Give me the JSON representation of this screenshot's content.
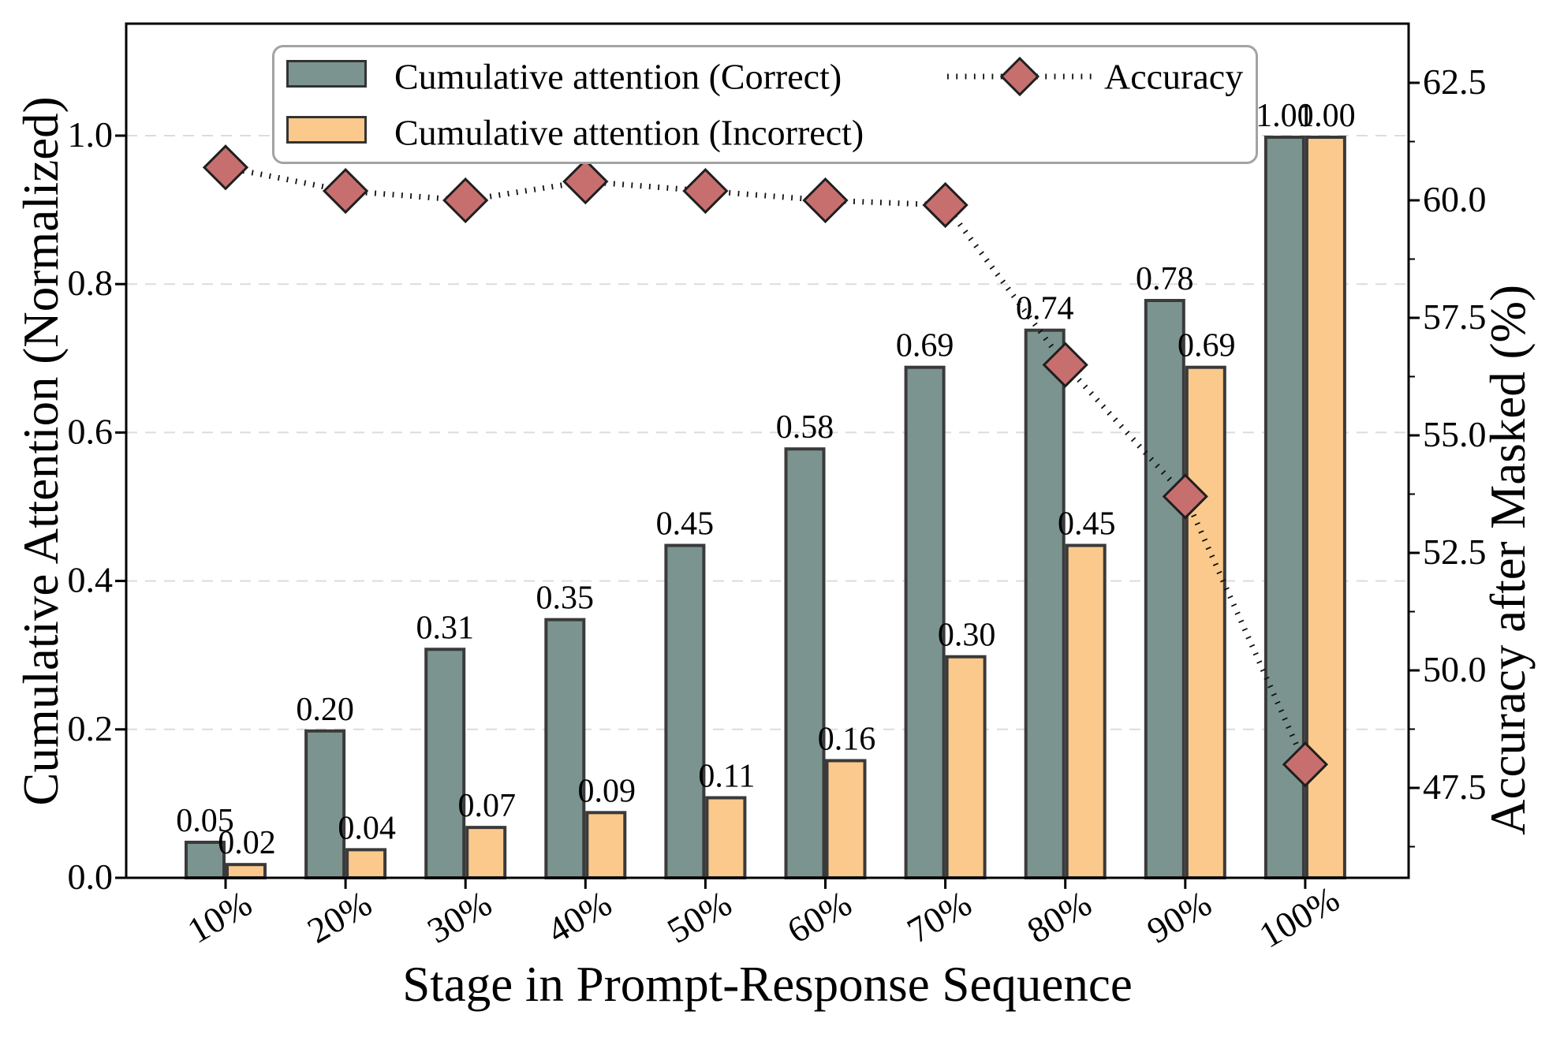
{
  "axes": {
    "x_title": "Stage in Prompt-Response Sequence",
    "y_left_title": "Cumulative Attention (Normalized)",
    "y_right_title": "Accuracy after Masked (%)"
  },
  "legend": {
    "correct_label": "Cumulative attention (Correct)",
    "incorrect_label": "Cumulative attention (Incorrect)",
    "accuracy_label": "Accuracy"
  },
  "chart_data": {
    "type": "bar",
    "categories": [
      "10%",
      "20%",
      "30%",
      "40%",
      "50%",
      "60%",
      "70%",
      "80%",
      "90%",
      "100%"
    ],
    "series": [
      {
        "name": "Cumulative attention (Correct)",
        "type": "bar",
        "axis": "left",
        "color": "#7B948F",
        "values": [
          0.05,
          0.2,
          0.31,
          0.35,
          0.45,
          0.58,
          0.69,
          0.74,
          0.78,
          1.0
        ],
        "labels": [
          "0.05",
          "0.20",
          "0.31",
          "0.35",
          "0.45",
          "0.58",
          "0.69",
          "0.74",
          "0.78",
          "1.00"
        ]
      },
      {
        "name": "Cumulative attention (Incorrect)",
        "type": "bar",
        "axis": "left",
        "color": "#FBC98C",
        "values": [
          0.02,
          0.04,
          0.07,
          0.09,
          0.11,
          0.16,
          0.3,
          0.45,
          0.69,
          1.0
        ],
        "labels": [
          "0.02",
          "0.04",
          "0.07",
          "0.09",
          "0.11",
          "0.16",
          "0.30",
          "0.45",
          "0.69",
          "1.00"
        ]
      },
      {
        "name": "Accuracy",
        "type": "line",
        "axis": "right",
        "line_style": "dotted",
        "line_color": "#111111",
        "marker": "diamond",
        "marker_color": "#C76F6F",
        "values": [
          60.7,
          60.2,
          60.0,
          60.4,
          60.2,
          60.0,
          59.9,
          56.5,
          53.7,
          48.0
        ]
      }
    ],
    "left_axis": {
      "label": "Cumulative Attention (Normalized)",
      "tick_values": [
        0.0,
        0.2,
        0.4,
        0.6,
        0.8,
        1.0
      ],
      "tick_labels": [
        "0.0",
        "0.2",
        "0.4",
        "0.6",
        "0.8",
        "1.0"
      ],
      "range": [
        0,
        1.151
      ]
    },
    "right_axis": {
      "label": "Accuracy after Masked (%)",
      "tick_values": [
        62.5,
        60.0,
        57.5,
        55.0,
        52.5,
        50.0,
        47.5
      ],
      "tick_labels": [
        "62.5",
        "60.0",
        "57.5",
        "55.0",
        "52.5",
        "50.0",
        "47.5"
      ],
      "range": [
        45.58,
        63.76
      ],
      "minor_tick_step": 1.25
    },
    "x_axis": {
      "label": "Stage in Prompt-Response Sequence",
      "tick_rotation_deg": -30
    },
    "grid": {
      "show": true,
      "color": "#DCDCDC",
      "style": "dashed"
    },
    "style_colors": {
      "bar_edge": "#3A3A3A",
      "spine": "#000000",
      "marker_edge": "#1F1F1F",
      "legend_border": "#A3A3A3"
    }
  }
}
